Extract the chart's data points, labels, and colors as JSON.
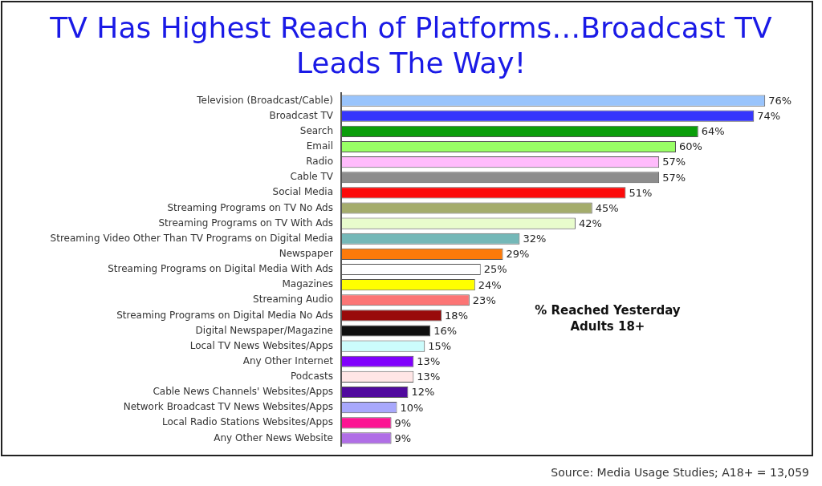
{
  "chart_data": {
    "type": "bar",
    "orientation": "horizontal",
    "title": "TV Has Highest Reach of Platforms…Broadcast TV Leads The Way!",
    "categories": [
      "Television (Broadcast/Cable)",
      "Broadcast TV",
      "Search",
      "Email",
      "Radio",
      "Cable TV",
      "Social Media",
      "Streaming Programs on TV No Ads",
      "Streaming Programs on TV With Ads",
      "Streaming Video Other Than TV Programs on Digital Media",
      "Newspaper",
      "Streaming Programs on Digital Media With Ads",
      "Magazines",
      "Streaming Audio",
      "Streaming Programs on Digital Media No Ads",
      "Digital Newspaper/Magazine",
      "Local TV News Websites/Apps",
      "Any Other Internet",
      "Podcasts",
      "Cable News Channels' Websites/Apps",
      "Network Broadcast TV News Websites/Apps",
      "Local Radio Stations Websites/Apps",
      "Any Other News Website"
    ],
    "values": [
      76,
      74,
      64,
      60,
      57,
      57,
      51,
      45,
      42,
      32,
      29,
      25,
      24,
      23,
      18,
      16,
      15,
      13,
      13,
      12,
      10,
      9,
      9
    ],
    "colors": [
      "#99c4fc",
      "#3636fc",
      "#0a9e0a",
      "#99ff66",
      "#ffbbfc",
      "#8c8c8c",
      "#fc0a0a",
      "#a4ac6c",
      "#e8fccc",
      "#74b8b8",
      "#fc7a0a",
      "#ffffff",
      "#ffff00",
      "#fc7575",
      "#990a0a",
      "#0f0f0f",
      "#ccfcfc",
      "#8000fc",
      "#ffe6e6",
      "#500a9e",
      "#a8a8fc",
      "#fc1493",
      "#b06ee6"
    ],
    "value_labels": [
      "76%",
      "74%",
      "64%",
      "60%",
      "57%",
      "57%",
      "51%",
      "45%",
      "42%",
      "32%",
      "29%",
      "25%",
      "24%",
      "23%",
      "18%",
      "16%",
      "15%",
      "13%",
      "13%",
      "12%",
      "10%",
      "9%",
      "9%"
    ],
    "annotations": [
      "% Reached Yesterday\nAdults 18+",
      "Source: Media Usage Studies; A18+ = 13,059"
    ]
  }
}
